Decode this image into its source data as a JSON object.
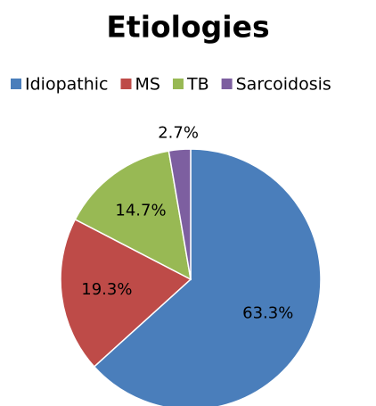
{
  "chart_data": {
    "type": "pie",
    "title": "Etiologies",
    "categories": [
      "Idiopathic",
      "MS",
      "TB",
      "Sarcoidosis"
    ],
    "values": [
      63.3,
      19.3,
      14.7,
      2.7
    ],
    "value_labels": [
      "63.3%",
      "19.3%",
      "14.7%",
      "2.7%"
    ],
    "colors": [
      "#4a7ebb",
      "#be4b48",
      "#98b954",
      "#7d5fa0"
    ],
    "legend": "top"
  }
}
